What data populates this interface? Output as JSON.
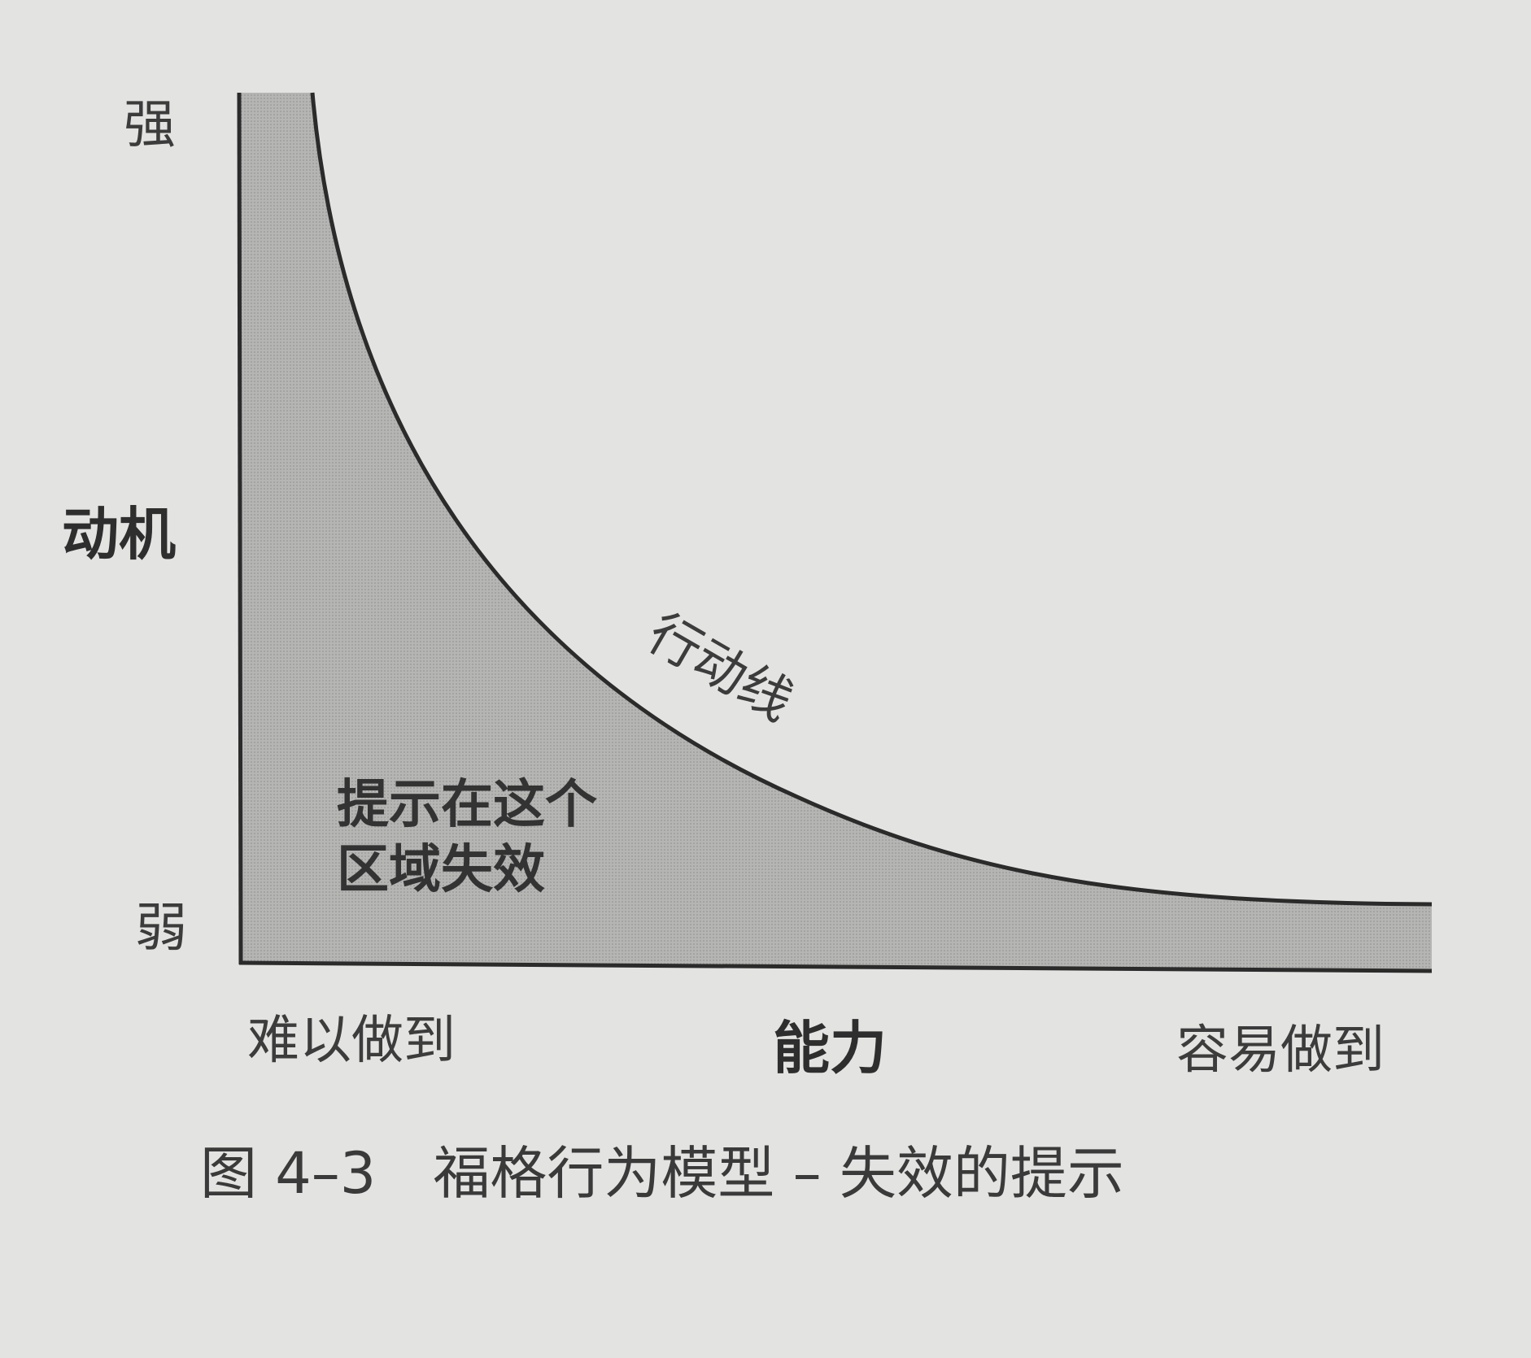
{
  "y_axis": {
    "label": "动机",
    "top_label": "强",
    "bottom_label": "弱"
  },
  "x_axis": {
    "label": "能力",
    "left_label": "难以做到",
    "right_label": "容易做到"
  },
  "curve_label": "行动线",
  "zone_label": [
    "提示在这个",
    "区域失效"
  ],
  "caption": {
    "number": "图 4–3",
    "title": "福格行为模型 – 失效的提示"
  },
  "colors": {
    "background": "#e3e4e1",
    "zone_fill": "#b3b3b1",
    "line": "#2b2b2b"
  }
}
